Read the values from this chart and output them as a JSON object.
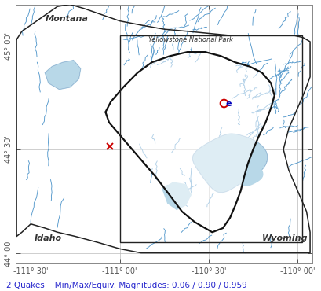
{
  "xlim": [
    -111.583,
    -109.917
  ],
  "ylim": [
    43.95,
    45.2
  ],
  "xticks": [
    -111.5,
    -111.0,
    -110.5,
    -110.0
  ],
  "yticks": [
    44.0,
    44.5,
    45.0
  ],
  "xlabel_labels": [
    "-111° 30'",
    "-111° 00'",
    "-110° 30'",
    "-110° 00'"
  ],
  "ylabel_labels": [
    "44° 00'",
    "44° 30'",
    "45° 00'"
  ],
  "bg_color": "#ffffff",
  "water_fill_color": "#b8d8e8",
  "river_color": "#5599cc",
  "grid_color": "#bbbbbb",
  "state_border_color": "#222222",
  "caldera_color": "#111111",
  "rect_color": "#222222",
  "bottom_text": "2 Quakes    Min/Max/Equiv. Magnitudes: 0.06 / 0.90 / 0.959",
  "bottom_text_color": "#2222cc",
  "label_montana": "Montana",
  "label_idaho": "Idaho",
  "label_wyoming": "Wyoming",
  "label_park": "Yellowstone National Park",
  "label_color": "#333333",
  "quake1_lon": -110.415,
  "quake1_lat": 44.725,
  "quake2_lon": -111.055,
  "quake2_lat": 44.515,
  "inner_rect_x0": -111.0,
  "inner_rect_y0": 44.05,
  "inner_rect_x1": -109.975,
  "inner_rect_y1": 45.05
}
